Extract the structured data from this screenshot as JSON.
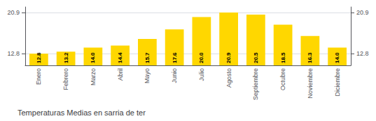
{
  "chart_data": {
    "type": "bar",
    "title": "Temperaturas Medias en sarria de ter",
    "categories": [
      "Enero",
      "Febrero",
      "Marzo",
      "Abril",
      "Mayo",
      "Junio",
      "Julio",
      "Agosto",
      "Septiembre",
      "Octubre",
      "Noviembre",
      "Diciembre"
    ],
    "values": [
      12.8,
      13.2,
      14.0,
      14.4,
      15.7,
      17.6,
      20.0,
      20.9,
      20.5,
      18.5,
      16.3,
      14.0
    ],
    "value_labels": [
      "12.8",
      "13.2",
      "14.0",
      "14.4",
      "15.7",
      "17.6",
      "20.0",
      "20.9",
      "20.5",
      "18.5",
      "16.3",
      "14.0"
    ],
    "color": "#FFD700",
    "data_labels": true,
    "ylim": [
      10.5,
      22.0
    ],
    "yticks": [
      12.8,
      20.9
    ],
    "y2lim": [
      10.5,
      22.0
    ],
    "y2ticks": [
      12.8,
      20.9
    ],
    "grid": true
  }
}
